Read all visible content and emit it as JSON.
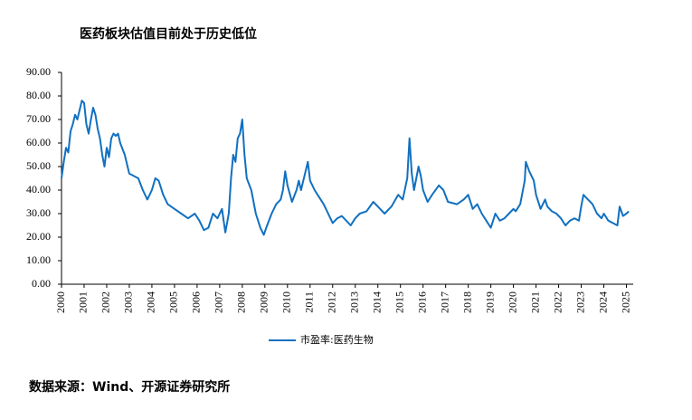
{
  "chart_data": {
    "type": "line",
    "title": "医药板块估值目前处于历史低位",
    "source": "数据来源：Wind、开源证券研究所",
    "x": [
      2000.0,
      2000.1,
      2000.2,
      2000.3,
      2000.4,
      2000.5,
      2000.6,
      2000.7,
      2000.8,
      2000.9,
      2001.0,
      2001.1,
      2001.2,
      2001.3,
      2001.4,
      2001.5,
      2001.6,
      2001.7,
      2001.8,
      2001.9,
      2002.0,
      2002.1,
      2002.2,
      2002.3,
      2002.4,
      2002.5,
      2002.6,
      2002.8,
      2003.0,
      2003.2,
      2003.4,
      2003.6,
      2003.8,
      2004.0,
      2004.15,
      2004.3,
      2004.5,
      2004.7,
      2005.0,
      2005.3,
      2005.6,
      2005.9,
      2006.1,
      2006.3,
      2006.5,
      2006.7,
      2006.9,
      2007.1,
      2007.25,
      2007.4,
      2007.5,
      2007.6,
      2007.7,
      2007.8,
      2007.9,
      2008.0,
      2008.1,
      2008.2,
      2008.4,
      2008.6,
      2008.8,
      2008.95,
      2009.1,
      2009.3,
      2009.5,
      2009.7,
      2009.8,
      2009.9,
      2010.0,
      2010.2,
      2010.4,
      2010.5,
      2010.6,
      2010.8,
      2010.9,
      2011.0,
      2011.2,
      2011.4,
      2011.6,
      2011.8,
      2012.0,
      2012.2,
      2012.4,
      2012.6,
      2012.8,
      2013.0,
      2013.2,
      2013.5,
      2013.8,
      2014.0,
      2014.3,
      2014.6,
      2014.9,
      2015.1,
      2015.3,
      2015.4,
      2015.5,
      2015.6,
      2015.8,
      2015.9,
      2016.0,
      2016.2,
      2016.4,
      2016.7,
      2016.9,
      2017.1,
      2017.5,
      2017.8,
      2018.0,
      2018.2,
      2018.4,
      2018.6,
      2018.8,
      2019.0,
      2019.2,
      2019.4,
      2019.6,
      2019.8,
      2020.0,
      2020.1,
      2020.3,
      2020.5,
      2020.55,
      2020.7,
      2020.9,
      2021.0,
      2021.2,
      2021.4,
      2021.5,
      2021.7,
      2021.9,
      2022.1,
      2022.3,
      2022.5,
      2022.7,
      2022.9,
      2023.0,
      2023.1,
      2023.3,
      2023.5,
      2023.7,
      2023.9,
      2024.0,
      2024.2,
      2024.4,
      2024.6,
      2024.7,
      2024.85,
      2025.0,
      2025.1
    ],
    "series": [
      {
        "name": "市盈率:医药生物",
        "color": "#1170c0",
        "values": [
          45,
          52,
          58,
          56,
          65,
          68,
          72,
          70,
          74,
          78,
          77,
          68,
          64,
          70,
          75,
          72,
          66,
          62,
          55,
          50,
          58,
          54,
          62,
          64,
          63,
          64,
          60,
          55,
          47,
          46,
          45,
          40,
          36,
          40,
          45,
          44,
          38,
          34,
          32,
          30,
          28,
          30,
          27,
          23,
          24,
          30,
          28,
          32,
          22,
          30,
          45,
          55,
          52,
          62,
          64,
          70,
          55,
          45,
          40,
          30,
          24,
          21,
          25,
          30,
          34,
          36,
          40,
          48,
          42,
          35,
          40,
          44,
          40,
          48,
          52,
          44,
          40,
          37,
          34,
          30,
          26,
          28,
          29,
          27,
          25,
          28,
          30,
          31,
          35,
          33,
          30,
          33,
          38,
          36,
          45,
          62,
          47,
          40,
          50,
          46,
          40,
          35,
          38,
          42,
          40,
          35,
          34,
          36,
          38,
          32,
          34,
          30,
          27,
          24,
          30,
          27,
          28,
          30,
          32,
          31,
          34,
          44,
          52,
          48,
          44,
          38,
          32,
          36,
          33,
          31,
          30,
          28,
          25,
          27,
          28,
          27,
          33,
          38,
          36,
          34,
          30,
          28,
          30,
          27,
          26,
          25,
          33,
          29,
          30,
          31
        ]
      }
    ],
    "xlim": [
      2000,
      2025.3
    ],
    "xticks": [
      2000,
      2001,
      2002,
      2003,
      2004,
      2005,
      2006,
      2007,
      2008,
      2009,
      2010,
      2011,
      2012,
      2013,
      2014,
      2015,
      2016,
      2017,
      2018,
      2019,
      2020,
      2021,
      2022,
      2023,
      2024,
      2025
    ],
    "ylim": [
      0,
      90
    ],
    "yticks": [
      {
        "value": 0,
        "label": "0.00"
      },
      {
        "value": 10,
        "label": "10.00"
      },
      {
        "value": 20,
        "label": "20.00"
      },
      {
        "value": 30,
        "label": "30.00"
      },
      {
        "value": 40,
        "label": "40.00"
      },
      {
        "value": 50,
        "label": "50.00"
      },
      {
        "value": 60,
        "label": "60.00"
      },
      {
        "value": 70,
        "label": "70.00"
      },
      {
        "value": 80,
        "label": "80.00"
      },
      {
        "value": 90,
        "label": "90.00"
      }
    ],
    "grid": false
  }
}
